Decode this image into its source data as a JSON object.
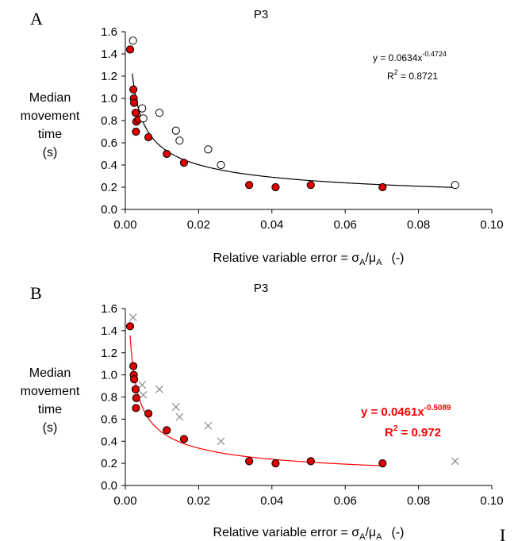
{
  "chart_data": [
    {
      "type": "scatter",
      "panel_label": "A",
      "title": "P3",
      "ylabel": [
        "Median",
        "movement",
        "time",
        "(s)"
      ],
      "xlabel": {
        "main": "Relative variable error = σ",
        "sub1": "A",
        "slash": "/μ",
        "sub2": "A",
        "unit": "(-)"
      },
      "xlim": [
        0,
        0.1
      ],
      "ylim": [
        0,
        1.6
      ],
      "x_ticks": [
        "0.00",
        "0.02",
        "0.04",
        "0.06",
        "0.08",
        "0.10"
      ],
      "y_ticks": [
        "0.0",
        "0.2",
        "0.4",
        "0.6",
        "0.8",
        "1.0",
        "1.2",
        "1.4",
        "1.6"
      ],
      "series": [
        {
          "marker": "filled-circle",
          "color": "#dd0000",
          "points": [
            [
              0.0013,
              1.44
            ],
            [
              0.0022,
              1.08
            ],
            [
              0.0023,
              1.0
            ],
            [
              0.0024,
              0.96
            ],
            [
              0.0028,
              0.87
            ],
            [
              0.003,
              0.79
            ],
            [
              0.0036,
              0.81
            ],
            [
              0.0029,
              0.7
            ],
            [
              0.0063,
              0.65
            ],
            [
              0.0113,
              0.5
            ],
            [
              0.016,
              0.42
            ],
            [
              0.0338,
              0.22
            ],
            [
              0.041,
              0.2
            ],
            [
              0.0506,
              0.22
            ],
            [
              0.0702,
              0.2
            ]
          ]
        },
        {
          "marker": "open-circle",
          "color": "#000000",
          "points": [
            [
              0.0021,
              1.52
            ],
            [
              0.0046,
              0.91
            ],
            [
              0.0049,
              0.82
            ],
            [
              0.0093,
              0.87
            ],
            [
              0.0138,
              0.71
            ],
            [
              0.0148,
              0.62
            ],
            [
              0.0226,
              0.54
            ],
            [
              0.0261,
              0.4
            ],
            [
              0.09,
              0.22
            ]
          ]
        }
      ],
      "fit": {
        "a": 0.0634,
        "b": -0.4724,
        "x_range": [
          0.0019,
          0.09
        ],
        "color": "#000000"
      },
      "equation": {
        "base": "y = 0.0634x",
        "exponent": "-0.4724",
        "r2_base": "R",
        "r2_exp": "2",
        "r2_value": " = 0.8721"
      }
    },
    {
      "type": "scatter",
      "panel_label": "B",
      "title": "P3",
      "ylabel": [
        "Median",
        "movement",
        "time",
        "(s)"
      ],
      "xlabel": {
        "main": "Relative variable error = σ",
        "sub1": "A",
        "slash": "/μ",
        "sub2": "A",
        "unit": "(-)"
      },
      "xlim": [
        0,
        0.1
      ],
      "ylim": [
        0,
        1.6
      ],
      "x_ticks": [
        "0.00",
        "0.02",
        "0.04",
        "0.06",
        "0.08",
        "0.10"
      ],
      "y_ticks": [
        "0.0",
        "0.2",
        "0.4",
        "0.6",
        "0.8",
        "1.0",
        "1.2",
        "1.4",
        "1.6"
      ],
      "series": [
        {
          "marker": "filled-circle",
          "color": "#dd0000",
          "points": [
            [
              0.0013,
              1.44
            ],
            [
              0.0022,
              1.08
            ],
            [
              0.0023,
              1.0
            ],
            [
              0.0024,
              0.96
            ],
            [
              0.0028,
              0.87
            ],
            [
              0.003,
              0.79
            ],
            [
              0.0029,
              0.7
            ],
            [
              0.0063,
              0.65
            ],
            [
              0.0113,
              0.5
            ],
            [
              0.016,
              0.42
            ],
            [
              0.0338,
              0.22
            ],
            [
              0.041,
              0.2
            ],
            [
              0.0506,
              0.22
            ],
            [
              0.0702,
              0.2
            ]
          ]
        },
        {
          "marker": "cross",
          "color": "#808080",
          "points": [
            [
              0.0021,
              1.52
            ],
            [
              0.0046,
              0.91
            ],
            [
              0.0049,
              0.82
            ],
            [
              0.0093,
              0.87
            ],
            [
              0.0138,
              0.71
            ],
            [
              0.0148,
              0.62
            ],
            [
              0.0226,
              0.54
            ],
            [
              0.0261,
              0.4
            ],
            [
              0.09,
              0.22
            ]
          ]
        }
      ],
      "fit": {
        "a": 0.0461,
        "b": -0.5089,
        "x_range": [
          0.0013,
          0.0702
        ],
        "color": "#ff0000"
      },
      "equation": {
        "base": "y = 0.0461x",
        "exponent": "-0.5089",
        "r2_base": "R",
        "r2_exp": "2",
        "r2_value": " = 0.972"
      }
    }
  ],
  "corner_fragment": "I"
}
